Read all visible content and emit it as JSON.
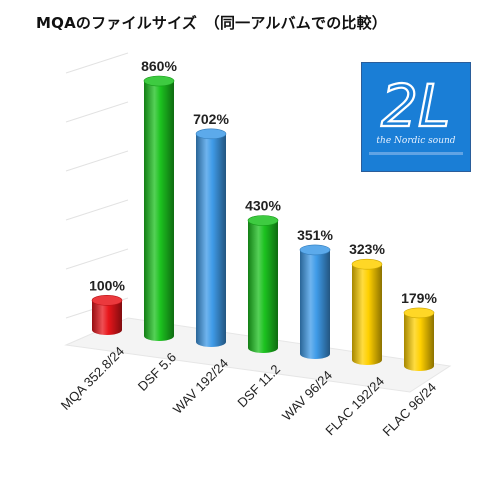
{
  "title": "MQAのファイルサイズ　（同一アルバムでの比較）",
  "logo": {
    "text": "2L",
    "tagline": "the Nordic sound"
  },
  "chart_data": {
    "type": "bar",
    "categories": [
      "MQA 352.8/24",
      "DSF 5.6",
      "WAV 192/24",
      "DSF 11.2",
      "WAV 96/24",
      "FLAC 192/24",
      "FLAC 96/24"
    ],
    "values": [
      100,
      860,
      702,
      430,
      351,
      323,
      179
    ],
    "data_labels": [
      "100%",
      "860%",
      "702%",
      "430%",
      "351%",
      "323%",
      "179%"
    ],
    "colors": [
      "#e8161b",
      "#1cc21f",
      "#3f9be8",
      "#1cc21f",
      "#3f9be8",
      "#ffd000",
      "#ffd000"
    ],
    "ylim": [
      0,
      860
    ],
    "grid": true,
    "style": "3d-cylinder"
  }
}
